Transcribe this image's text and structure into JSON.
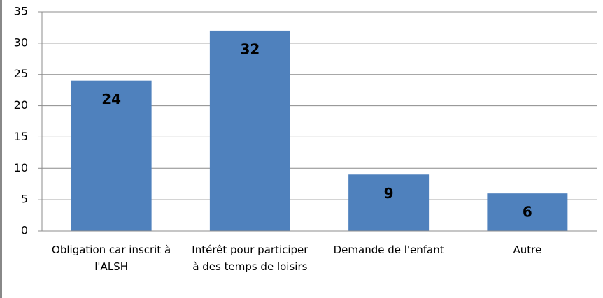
{
  "chart_data": {
    "type": "bar",
    "categories": [
      "Obligation car inscrit à l'ALSH",
      "Intérêt pour participer à des temps de loisirs",
      "Demande de l'enfant",
      "Autre"
    ],
    "values": [
      24,
      32,
      9,
      6
    ],
    "color": "#4f81bd",
    "ylim": [
      0,
      35
    ],
    "yticks": [
      0,
      5,
      10,
      15,
      20,
      25,
      30,
      35
    ],
    "grid": true
  }
}
